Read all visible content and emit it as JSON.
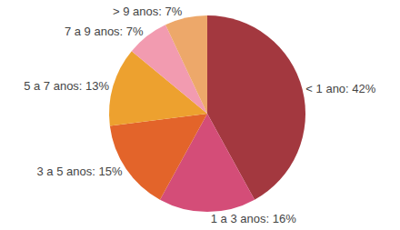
{
  "chart_data": {
    "type": "pie",
    "categories": [
      "< 1 ano",
      "1 a 3 anos",
      "3 a 5 anos",
      "5 a 7 anos",
      "7 a 9 anos",
      "> 9 anos"
    ],
    "values": [
      42,
      16,
      15,
      13,
      7,
      7
    ],
    "value_labels": [
      "< 1 ano: 42%",
      "1 a 3 anos: 16%",
      "3 a 5 anos: 15%",
      "5 a 7 anos: 13%",
      "7 a 9 anos: 7%",
      "> 9 anos: 7%"
    ],
    "colors": [
      "#a3383f",
      "#d44d78",
      "#e3642a",
      "#eda12f",
      "#f29bb0",
      "#eda86a"
    ],
    "data_labels": true
  }
}
